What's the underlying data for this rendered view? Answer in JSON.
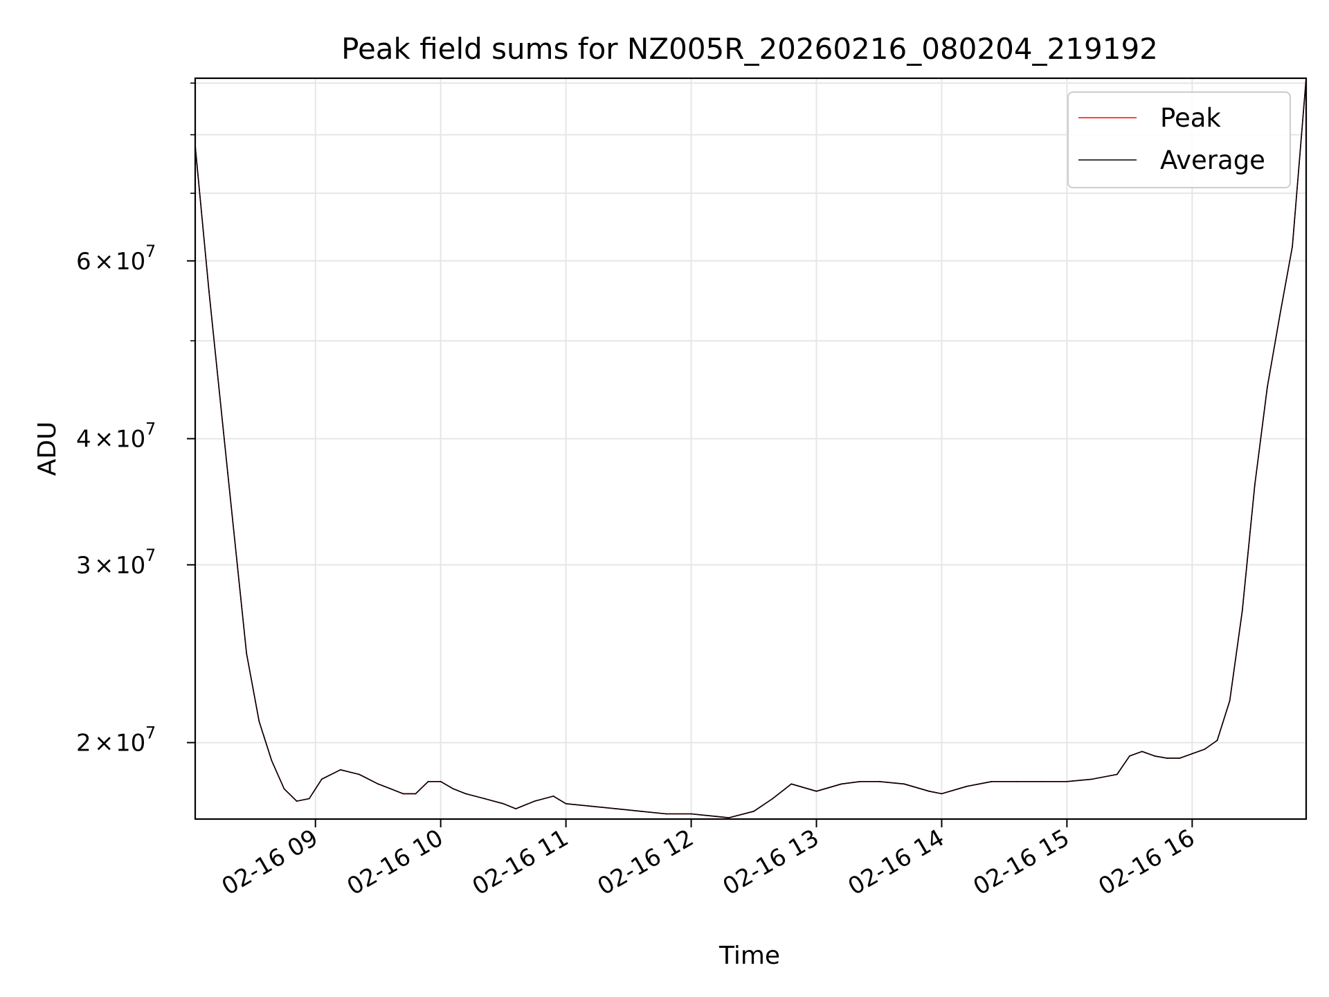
{
  "chart_data": {
    "type": "line",
    "title": "Peak field sums for NZ005R_20260216_080204_219192",
    "xlabel": "Time",
    "ylabel": "ADU",
    "yscale": "log",
    "xlim_hours": [
      8.04,
      16.91
    ],
    "ylim": [
      16800000,
      91000000
    ],
    "grid": true,
    "legend_position": "top-right",
    "x_ticks": [
      {
        "value": 9,
        "label": "02-16 09"
      },
      {
        "value": 10,
        "label": "02-16 10"
      },
      {
        "value": 11,
        "label": "02-16 11"
      },
      {
        "value": 12,
        "label": "02-16 12"
      },
      {
        "value": 13,
        "label": "02-16 13"
      },
      {
        "value": 14,
        "label": "02-16 14"
      },
      {
        "value": 15,
        "label": "02-16 15"
      },
      {
        "value": 16,
        "label": "02-16 16"
      }
    ],
    "y_major_ticks": [
      {
        "value": 20000000,
        "mantissa": "2",
        "exponent": "7"
      },
      {
        "value": 30000000,
        "mantissa": "3",
        "exponent": "7"
      },
      {
        "value": 40000000,
        "mantissa": "4",
        "exponent": "7"
      },
      {
        "value": 60000000,
        "mantissa": "6",
        "exponent": "7"
      }
    ],
    "y_minor_ticks": [
      50000000,
      70000000,
      80000000,
      90000000
    ],
    "series": [
      {
        "name": "Peak",
        "color": "#ff0000",
        "x": [
          8.04,
          8.15,
          8.3,
          8.45,
          8.55,
          8.65,
          8.75,
          8.85,
          8.95,
          9.05,
          9.2,
          9.35,
          9.5,
          9.6,
          9.7,
          9.8,
          9.9,
          10.0,
          10.1,
          10.2,
          10.35,
          10.5,
          10.6,
          10.75,
          10.9,
          11.0,
          11.2,
          11.4,
          11.6,
          11.8,
          12.0,
          12.2,
          12.3,
          12.5,
          12.65,
          12.8,
          13.0,
          13.2,
          13.35,
          13.5,
          13.7,
          13.9,
          14.0,
          14.2,
          14.4,
          14.6,
          14.8,
          15.0,
          15.2,
          15.4,
          15.5,
          15.6,
          15.7,
          15.8,
          15.9,
          16.0,
          16.1,
          16.2,
          16.3,
          16.4,
          16.5,
          16.6,
          16.7,
          16.8,
          16.91
        ],
        "values": [
          78000000,
          56000000,
          37000000,
          24500000,
          21000000,
          19200000,
          18000000,
          17500000,
          17600000,
          18400000,
          18800000,
          18600000,
          18200000,
          18000000,
          17800000,
          17800000,
          18300000,
          18300000,
          18000000,
          17800000,
          17600000,
          17400000,
          17200000,
          17500000,
          17700000,
          17400000,
          17300000,
          17200000,
          17100000,
          17000000,
          17000000,
          16900000,
          16850000,
          17100000,
          17600000,
          18200000,
          17900000,
          18200000,
          18300000,
          18300000,
          18200000,
          17900000,
          17800000,
          18100000,
          18300000,
          18300000,
          18300000,
          18300000,
          18400000,
          18600000,
          19400000,
          19600000,
          19400000,
          19300000,
          19300000,
          19500000,
          19700000,
          20100000,
          22000000,
          27000000,
          36000000,
          45000000,
          53000000,
          62000000,
          91000000
        ]
      },
      {
        "name": "Average",
        "color": "#000000",
        "x": [
          8.04,
          8.15,
          8.3,
          8.45,
          8.55,
          8.65,
          8.75,
          8.85,
          8.95,
          9.05,
          9.2,
          9.35,
          9.5,
          9.6,
          9.7,
          9.8,
          9.9,
          10.0,
          10.1,
          10.2,
          10.35,
          10.5,
          10.6,
          10.75,
          10.9,
          11.0,
          11.2,
          11.4,
          11.6,
          11.8,
          12.0,
          12.2,
          12.3,
          12.5,
          12.65,
          12.8,
          13.0,
          13.2,
          13.35,
          13.5,
          13.7,
          13.9,
          14.0,
          14.2,
          14.4,
          14.6,
          14.8,
          15.0,
          15.2,
          15.4,
          15.5,
          15.6,
          15.7,
          15.8,
          15.9,
          16.0,
          16.1,
          16.2,
          16.3,
          16.4,
          16.5,
          16.6,
          16.7,
          16.8,
          16.91
        ],
        "values": [
          78000000,
          56000000,
          37000000,
          24500000,
          21000000,
          19200000,
          18000000,
          17500000,
          17600000,
          18400000,
          18800000,
          18600000,
          18200000,
          18000000,
          17800000,
          17800000,
          18300000,
          18300000,
          18000000,
          17800000,
          17600000,
          17400000,
          17200000,
          17500000,
          17700000,
          17400000,
          17300000,
          17200000,
          17100000,
          17000000,
          17000000,
          16900000,
          16850000,
          17100000,
          17600000,
          18200000,
          17900000,
          18200000,
          18300000,
          18300000,
          18200000,
          17900000,
          17800000,
          18100000,
          18300000,
          18300000,
          18300000,
          18300000,
          18400000,
          18600000,
          19400000,
          19600000,
          19400000,
          19300000,
          19300000,
          19500000,
          19700000,
          20100000,
          22000000,
          27000000,
          36000000,
          45000000,
          53000000,
          62000000,
          91000000
        ]
      }
    ]
  }
}
